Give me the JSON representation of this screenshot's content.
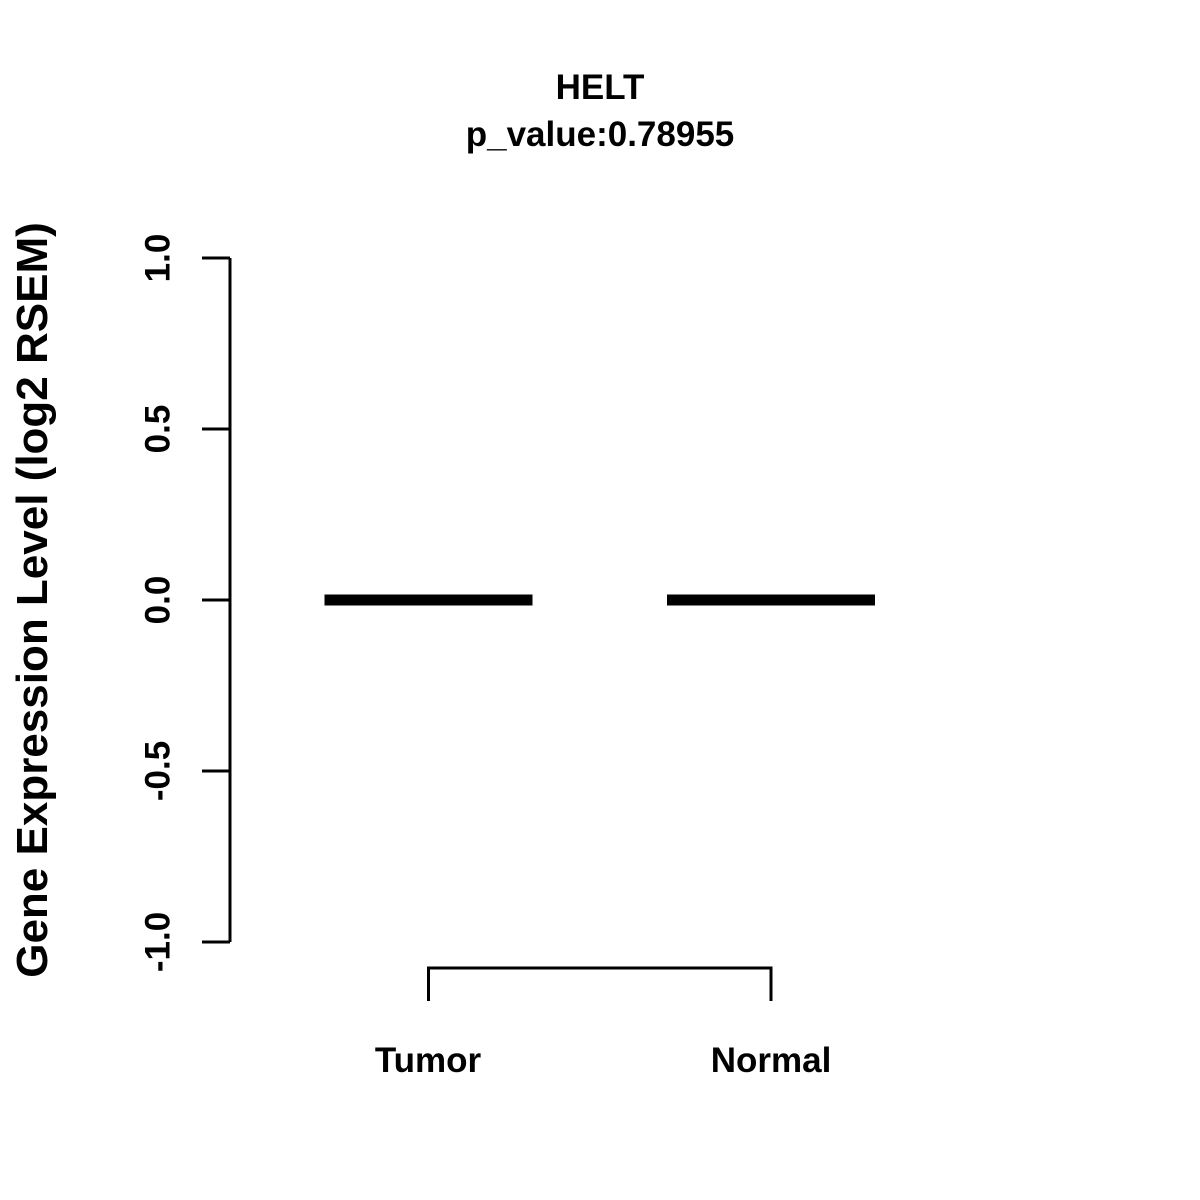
{
  "chart_data": {
    "type": "boxplot",
    "title": "HELT",
    "subtitle": "p_value:0.78955",
    "p_value": "0.78955",
    "ylabel": "Gene Expression Level (log2 RSEM)",
    "xlabel": "",
    "categories": [
      "Tumor",
      "Normal"
    ],
    "series": [
      {
        "name": "Tumor",
        "min": 0.0,
        "q1": 0.0,
        "median": 0.0,
        "q3": 0.0,
        "max": 0.0
      },
      {
        "name": "Normal",
        "min": 0.0,
        "q1": 0.0,
        "median": 0.0,
        "q3": 0.0,
        "max": 0.0
      }
    ],
    "ylim": [
      -1.0,
      1.0
    ],
    "ytick_values": [
      -1.0,
      -0.5,
      0.0,
      0.5,
      1.0
    ],
    "ytick_labels": [
      "-1.0",
      "-0.5",
      "0.0",
      "0.5",
      "1.0"
    ],
    "grid": false,
    "legend": "none",
    "comparison_bracket": {
      "from": "Tumor",
      "to": "Normal"
    },
    "colors": {
      "foreground": "#000000",
      "background": "#ffffff"
    }
  }
}
